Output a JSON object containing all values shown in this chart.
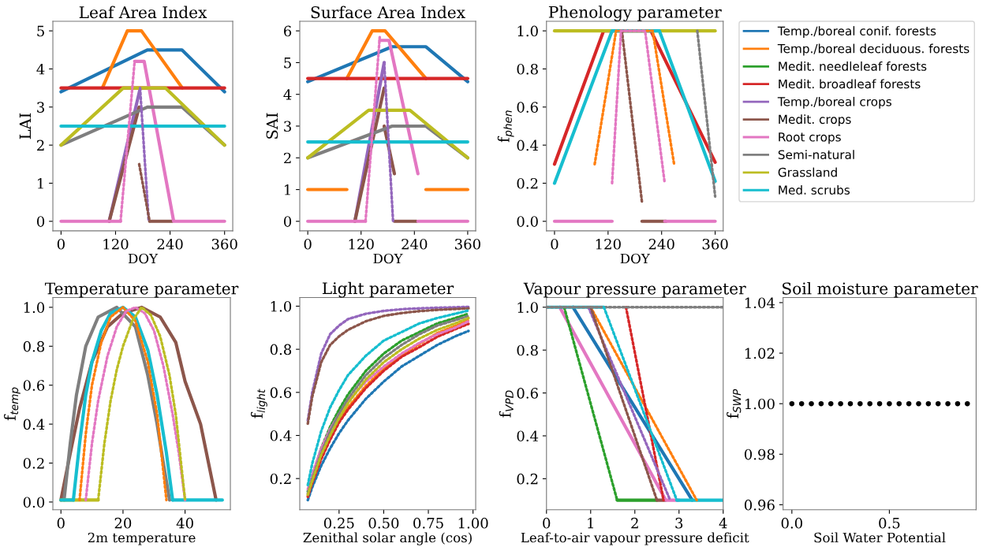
{
  "chart_data": [
    {
      "type": "line",
      "title": "Leaf Area Index",
      "xlabel": "DOY",
      "ylabel": "LAI",
      "xlim": [
        -18,
        378
      ],
      "ylim": [
        -0.25,
        5.25
      ],
      "xticks": [
        0,
        120,
        240,
        360
      ],
      "yticks": [
        0,
        1,
        2,
        3,
        4,
        5
      ],
      "series": [
        {
          "color": "#1f77b4",
          "x": [
            0,
            190,
            266,
            360
          ],
          "values": [
            3.4,
            4.5,
            4.5,
            3.4
          ]
        },
        {
          "color": "#ff7f0e",
          "x": [
            91,
            146,
            177,
            267
          ],
          "values": [
            3.5,
            5,
            5,
            3.5
          ]
        },
        {
          "color": "#d62728",
          "x": [
            0,
            360
          ],
          "values": [
            3.5,
            3.5
          ]
        },
        {
          "color": "#9467bd",
          "x": [
            106,
            174
          ],
          "values": [
            0,
            3.48
          ]
        },
        {
          "color": "#9467bd",
          "x": [
            174,
            193
          ],
          "values": [
            3.5,
            0
          ],
          "line_style": "dotted"
        },
        {
          "color": "#8c564b",
          "x": [
            106,
            172
          ],
          "values": [
            0,
            3.0
          ]
        },
        {
          "color": "#8c564b",
          "x": [
            172,
            195
          ],
          "values": [
            1.5,
            0
          ],
          "line_style": "dotted"
        },
        {
          "color": "#8c564b",
          "x": [
            195,
            245
          ],
          "values": [
            0,
            0
          ]
        },
        {
          "color": "#e377c2",
          "x": [
            0,
            131
          ],
          "values": [
            0,
            0
          ]
        },
        {
          "color": "#e377c2",
          "x": [
            131,
            162
          ],
          "values": [
            0,
            4.2
          ],
          "line_style": "dotted"
        },
        {
          "color": "#e377c2",
          "x": [
            162,
            183,
            248,
            360
          ],
          "values": [
            4.2,
            4.2,
            0,
            0
          ]
        },
        {
          "color": "#7f7f7f",
          "x": [
            0,
            190,
            266,
            360
          ],
          "values": [
            2,
            3,
            3,
            2
          ]
        },
        {
          "color": "#bcbd22",
          "x": [
            0,
            137,
            230,
            360
          ],
          "values": [
            2,
            3.5,
            3.5,
            2
          ]
        },
        {
          "color": "#17becf",
          "x": [
            0,
            360
          ],
          "values": [
            2.5,
            2.5
          ]
        }
      ]
    },
    {
      "type": "line",
      "title": "Surface Area Index",
      "xlabel": "DOY",
      "ylabel": "SAI",
      "xlim": [
        -18,
        378
      ],
      "ylim": [
        -0.3,
        6.3
      ],
      "xticks": [
        0,
        120,
        240,
        360
      ],
      "yticks": [
        0,
        1,
        2,
        3,
        4,
        5,
        6
      ],
      "series": [
        {
          "color": "#1f77b4",
          "x": [
            0,
            190,
            266,
            360
          ],
          "values": [
            4.4,
            5.5,
            5.5,
            4.4
          ]
        },
        {
          "color": "#ff7f0e",
          "x": [
            0,
            88
          ],
          "values": [
            1,
            1
          ]
        },
        {
          "color": "#ff7f0e",
          "x": [
            88,
            145,
            174,
            266
          ],
          "values": [
            4.5,
            6,
            6,
            4.5
          ]
        },
        {
          "color": "#ff7f0e",
          "x": [
            266,
            360
          ],
          "values": [
            1,
            1
          ]
        },
        {
          "color": "#d62728",
          "x": [
            0,
            360
          ],
          "values": [
            4.5,
            4.5
          ]
        },
        {
          "color": "#9467bd",
          "x": [
            106,
            172
          ],
          "values": [
            0,
            5.0
          ]
        },
        {
          "color": "#9467bd",
          "x": [
            172,
            192
          ],
          "values": [
            5.0,
            0
          ],
          "line_style": "dotted"
        },
        {
          "color": "#8c564b",
          "x": [
            106,
            172
          ],
          "values": [
            0,
            4.2
          ]
        },
        {
          "color": "#8c564b",
          "x": [
            172,
            195
          ],
          "values": [
            3.0,
            1.5
          ]
        },
        {
          "color": "#8c564b",
          "x": [
            195,
            245
          ],
          "values": [
            0,
            0
          ]
        },
        {
          "color": "#e377c2",
          "x": [
            0,
            130
          ],
          "values": [
            0,
            0
          ]
        },
        {
          "color": "#e377c2",
          "x": [
            130,
            162
          ],
          "values": [
            0,
            5.8
          ],
          "line_style": "dotted"
        },
        {
          "color": "#e377c2",
          "x": [
            162,
            183,
            248
          ],
          "values": [
            5.7,
            5.7,
            1.5
          ]
        },
        {
          "color": "#e377c2",
          "x": [
            248,
            360
          ],
          "values": [
            0,
            0
          ]
        },
        {
          "color": "#7f7f7f",
          "x": [
            0,
            190,
            266,
            360
          ],
          "values": [
            2,
            3,
            3,
            2
          ]
        },
        {
          "color": "#bcbd22",
          "x": [
            0,
            137,
            230,
            360
          ],
          "values": [
            2,
            3.5,
            3.5,
            2
          ]
        },
        {
          "color": "#17becf",
          "x": [
            0,
            360
          ],
          "values": [
            2.5,
            2.5
          ]
        }
      ]
    },
    {
      "type": "line",
      "title": "Phenology parameter",
      "xlabel": "DOY",
      "ylabel": "f$_{phen}$",
      "xlim": [
        -18,
        378
      ],
      "ylim": [
        -0.05,
        1.05
      ],
      "xticks": [
        0,
        120,
        240,
        360
      ],
      "yticks": [
        {
          "value": 0,
          "label": "0.0"
        },
        {
          "value": 0.2,
          "label": "0.2"
        },
        {
          "value": 0.4,
          "label": "0.4"
        },
        {
          "value": 0.6,
          "label": "0.6"
        },
        {
          "value": 0.8,
          "label": "0.8"
        },
        {
          "value": 1,
          "label": "1.0"
        }
      ],
      "legend": "right",
      "series": [
        {
          "name": "Temp./boreal conif. forests",
          "color": "#1f77b4"
        },
        {
          "name": "Temp./boreal deciduous. forests",
          "color": "#ff7f0e",
          "x": [
            90,
            138,
            220,
            268
          ],
          "values": [
            0.3,
            1,
            1,
            0.3
          ],
          "line_style": "dotted"
        },
        {
          "name": "Medit. needleleaf forests",
          "color": "#2ca02c"
        },
        {
          "name": "Medit. broadleaf forests",
          "color": "#d62728",
          "x": [
            0,
            110,
            216,
            360
          ],
          "values": [
            0.3,
            1,
            1,
            0.31
          ]
        },
        {
          "name": "Temp./boreal crops",
          "color": "#9467bd"
        },
        {
          "name": "Medit. crops",
          "color": "#8c564b",
          "x": [
            151,
            196
          ],
          "values": [
            1,
            0.1
          ],
          "line_style": "dotted"
        },
        {
          "color": "#8c564b",
          "x": [
            196,
            250
          ],
          "values": [
            0,
            0
          ]
        },
        {
          "name": "Root crops",
          "color": "#e377c2",
          "x": [
            129,
            149,
            203,
            247
          ],
          "values": [
            0.2,
            1,
            1,
            0.2
          ],
          "line_style": "dotted"
        },
        {
          "color": "#e377c2",
          "x": [
            0,
            129
          ],
          "values": [
            0,
            0
          ]
        },
        {
          "color": "#e377c2",
          "x": [
            247,
            360
          ],
          "values": [
            0,
            0
          ]
        },
        {
          "name": "Semi-natural",
          "color": "#7f7f7f",
          "x": [
            320,
            360
          ],
          "values": [
            1,
            0.13
          ],
          "line_style": "dotted"
        },
        {
          "name": "Grassland",
          "color": "#bcbd22",
          "x": [
            0,
            360
          ],
          "values": [
            1,
            1
          ]
        },
        {
          "name": "Med. scrubs",
          "color": "#17becf",
          "x": [
            0,
            129,
            235,
            360
          ],
          "values": [
            0.2,
            1,
            1,
            0.21
          ]
        }
      ]
    },
    {
      "type": "line",
      "title": "Temperature parameter",
      "xlabel": "2m temperature",
      "ylabel": "f$_{temp}$",
      "xlim": [
        -2.6,
        54.6
      ],
      "ylim": [
        -0.04,
        1.05
      ],
      "xticks": [
        0,
        20,
        40
      ],
      "yticks": [
        {
          "value": 0,
          "label": "0.0"
        },
        {
          "value": 0.2,
          "label": "0.2"
        },
        {
          "value": 0.4,
          "label": "0.4"
        },
        {
          "value": 0.6,
          "label": "0.6"
        },
        {
          "value": 0.8,
          "label": "0.8"
        },
        {
          "value": 1,
          "label": "1.0"
        }
      ],
      "series": [
        {
          "color": "#ff7f0e",
          "x": [
            6,
            8,
            10,
            13,
            16,
            20,
            24,
            28,
            31,
            34
          ],
          "values": [
            0.01,
            0.35,
            0.6,
            0.82,
            0.95,
            1.0,
            0.93,
            0.72,
            0.45,
            0.01
          ],
          "line_style": "dotted"
        },
        {
          "color": "#8c564b",
          "x": [
            0,
            3,
            6,
            10,
            15,
            20,
            26,
            32,
            37,
            40,
            45,
            50
          ],
          "values": [
            0.01,
            0.25,
            0.48,
            0.72,
            0.9,
            0.97,
            1.0,
            0.95,
            0.82,
            0.62,
            0.4,
            0.01
          ]
        },
        {
          "color": "#e377c2",
          "x": [
            8,
            10,
            12,
            15,
            18,
            21,
            24,
            27,
            30,
            33,
            36,
            38,
            40
          ],
          "values": [
            0.01,
            0.3,
            0.52,
            0.75,
            0.9,
            0.98,
            1.0,
            0.97,
            0.88,
            0.7,
            0.45,
            0.25,
            0.01
          ],
          "line_style": "dotted"
        },
        {
          "color": "#7f7f7f",
          "x": [
            1,
            3,
            5,
            8,
            12,
            18,
            24,
            28,
            31,
            33,
            35
          ],
          "values": [
            0.01,
            0.3,
            0.55,
            0.8,
            0.95,
            1.0,
            0.9,
            0.65,
            0.4,
            0.2,
            0.01
          ]
        },
        {
          "color": "#bcbd22",
          "x": [
            0,
            12
          ],
          "values": [
            0.01,
            0.01
          ]
        },
        {
          "color": "#bcbd22",
          "x": [
            12,
            14,
            16,
            18,
            20,
            23,
            26,
            29,
            32,
            35,
            37,
            40
          ],
          "values": [
            0.01,
            0.3,
            0.52,
            0.68,
            0.8,
            0.93,
            1.0,
            0.96,
            0.85,
            0.65,
            0.45,
            0.01
          ],
          "line_style": "dotted"
        },
        {
          "color": "#17becf",
          "x": [
            0,
            4
          ],
          "values": [
            0.01,
            0.01
          ]
        },
        {
          "color": "#17becf",
          "x": [
            4,
            6,
            8,
            10,
            13,
            16,
            20,
            24,
            28,
            31,
            34,
            36
          ],
          "values": [
            0.01,
            0.3,
            0.55,
            0.72,
            0.88,
            0.97,
            1.0,
            0.95,
            0.78,
            0.55,
            0.25,
            0.01
          ]
        },
        {
          "color": "#17becf",
          "x": [
            36,
            52
          ],
          "values": [
            0.01,
            0.01
          ]
        }
      ]
    },
    {
      "type": "line",
      "title": "Light parameter",
      "xlabel": "Zenithal solar angle (cos)",
      "ylabel": "f$_{light}$",
      "line_style": "dotted",
      "xlim": [
        0.03,
        1.015
      ],
      "ylim": [
        0.055,
        1.04
      ],
      "xticks": [
        0.25,
        {
          "value": 0.5,
          "label": "0.50"
        },
        0.75,
        {
          "value": 1,
          "label": "1.00"
        }
      ],
      "yticks": [
        {
          "value": 0.2,
          "label": "0.2"
        },
        {
          "value": 0.4,
          "label": "0.4"
        },
        {
          "value": 0.6,
          "label": "0.6"
        },
        {
          "value": 0.8,
          "label": "0.8"
        },
        {
          "value": 1,
          "label": "1.0"
        }
      ],
      "x": [
        0.075,
        0.1,
        0.15,
        0.2,
        0.25,
        0.3,
        0.4,
        0.5,
        0.6,
        0.7,
        0.8,
        0.9,
        0.975
      ],
      "series": [
        {
          "color": "#1f77b4",
          "values": [
            0.1,
            0.16,
            0.26,
            0.34,
            0.41,
            0.47,
            0.57,
            0.65,
            0.72,
            0.77,
            0.82,
            0.86,
            0.885
          ]
        },
        {
          "color": "#ff7f0e",
          "values": [
            0.12,
            0.19,
            0.3,
            0.39,
            0.47,
            0.53,
            0.63,
            0.71,
            0.77,
            0.825,
            0.875,
            0.908,
            0.935
          ]
        },
        {
          "color": "#2ca02c",
          "values": [
            0.14,
            0.21,
            0.34,
            0.44,
            0.52,
            0.59,
            0.7,
            0.78,
            0.84,
            0.88,
            0.92,
            0.945,
            0.965
          ]
        },
        {
          "color": "#d62728",
          "values": [
            0.115,
            0.18,
            0.29,
            0.38,
            0.46,
            0.52,
            0.62,
            0.7,
            0.765,
            0.81,
            0.858,
            0.893,
            0.918
          ]
        },
        {
          "color": "#9467bd",
          "values": [
            0.47,
            0.6,
            0.78,
            0.87,
            0.91,
            0.94,
            0.965,
            0.978,
            0.986,
            0.99,
            0.993,
            0.995,
            0.997
          ]
        },
        {
          "color": "#8c564b",
          "values": [
            0.455,
            0.58,
            0.74,
            0.82,
            0.86,
            0.89,
            0.93,
            0.955,
            0.968,
            0.977,
            0.983,
            0.987,
            0.99
          ]
        },
        {
          "color": "#e377c2",
          "values": [
            0.15,
            0.22,
            0.34,
            0.43,
            0.5,
            0.56,
            0.65,
            0.72,
            0.78,
            0.83,
            0.87,
            0.9,
            0.93
          ]
        },
        {
          "color": "#7f7f7f",
          "values": [
            0.13,
            0.2,
            0.32,
            0.42,
            0.5,
            0.57,
            0.68,
            0.76,
            0.82,
            0.87,
            0.91,
            0.935,
            0.955
          ]
        },
        {
          "color": "#bcbd22",
          "values": [
            0.125,
            0.19,
            0.31,
            0.4,
            0.48,
            0.55,
            0.66,
            0.74,
            0.8,
            0.85,
            0.89,
            0.92,
            0.945
          ]
        },
        {
          "color": "#17becf",
          "values": [
            0.17,
            0.27,
            0.42,
            0.53,
            0.61,
            0.68,
            0.77,
            0.84,
            0.88,
            0.92,
            0.945,
            0.965,
            0.98
          ]
        }
      ]
    },
    {
      "type": "line",
      "title": "Vapour pressure parameter",
      "xlabel": "Leaf-to-air vapour pressure deficit",
      "ylabel": "f$_{VPD}$",
      "xlim": [
        0,
        4
      ],
      "ylim": [
        0.055,
        1.045
      ],
      "xticks": [
        0,
        1,
        2,
        3,
        4
      ],
      "yticks": [
        {
          "value": 0.2,
          "label": "0.2"
        },
        {
          "value": 0.4,
          "label": "0.4"
        },
        {
          "value": 0.6,
          "label": "0.6"
        },
        {
          "value": 0.8,
          "label": "0.8"
        },
        {
          "value": 1,
          "label": "1.0"
        }
      ],
      "series": [
        {
          "color": "#1f77b4",
          "x": [
            0.6,
            3.3
          ],
          "values": [
            1,
            0.1
          ]
        },
        {
          "color": "#ff7f0e",
          "x": [
            1.0,
            3.4
          ],
          "values": [
            1,
            0.1
          ],
          "line_style": "dotted"
        },
        {
          "color": "#2ca02c",
          "x": [
            0.4,
            1.6
          ],
          "values": [
            1,
            0.1
          ],
          "line_style": "dotted"
        },
        {
          "color": "#2ca02c",
          "x": [
            1.6,
            2.5
          ],
          "values": [
            0.1,
            0.1
          ]
        },
        {
          "color": "#d62728",
          "x": [
            1.8,
            2.65
          ],
          "values": [
            1,
            0.1
          ],
          "line_style": "dotted"
        },
        {
          "color": "#9467bd",
          "x": [
            0.95,
            2.8
          ],
          "values": [
            1,
            0.1
          ],
          "line_style": "dotted"
        },
        {
          "color": "#8c564b",
          "x": [
            1.0,
            2.5
          ],
          "values": [
            1,
            0.1
          ],
          "line_style": "dotted"
        },
        {
          "color": "#8c564b",
          "x": [
            2.5,
            2.7
          ],
          "values": [
            0.1,
            0.1
          ]
        },
        {
          "color": "#e377c2",
          "x": [
            0.3,
            2.7,
            3.0
          ],
          "values": [
            1,
            0.1,
            0.1
          ]
        },
        {
          "color": "#7f7f7f",
          "x": [
            0,
            4
          ],
          "values": [
            1,
            1
          ],
          "line_style": "dotted"
        },
        {
          "color": "#17becf",
          "x": [
            0,
            1.3
          ],
          "values": [
            1,
            1
          ]
        },
        {
          "color": "#17becf",
          "x": [
            1.3,
            2.95
          ],
          "values": [
            1,
            0.1
          ],
          "line_style": "dotted"
        },
        {
          "color": "#17becf",
          "x": [
            2.95,
            4
          ],
          "values": [
            0.1,
            0.1
          ]
        }
      ]
    },
    {
      "type": "scatter",
      "title": "Soil moisture parameter",
      "xlabel": "Soil Water Potential",
      "ylabel": "f$_{SWP}$",
      "marker": "circle",
      "xlim": [
        -0.045,
        0.945
      ],
      "ylim": [
        0.958,
        1.042
      ],
      "xticks": [
        {
          "value": 0,
          "label": "0.0"
        },
        {
          "value": 0.5,
          "label": "0.5"
        }
      ],
      "yticks": [
        0.96,
        0.98,
        {
          "value": 1,
          "label": "1.00"
        },
        1.02,
        1.04
      ],
      "series": [
        {
          "color": "#000000",
          "x": [
            0,
            0.05,
            0.1,
            0.15,
            0.2,
            0.25,
            0.3,
            0.35,
            0.4,
            0.45,
            0.5,
            0.55,
            0.6,
            0.65,
            0.7,
            0.75,
            0.8,
            0.85,
            0.9
          ],
          "values": [
            1,
            1,
            1,
            1,
            1,
            1,
            1,
            1,
            1,
            1,
            1,
            1,
            1,
            1,
            1,
            1,
            1,
            1,
            1
          ]
        }
      ]
    }
  ]
}
